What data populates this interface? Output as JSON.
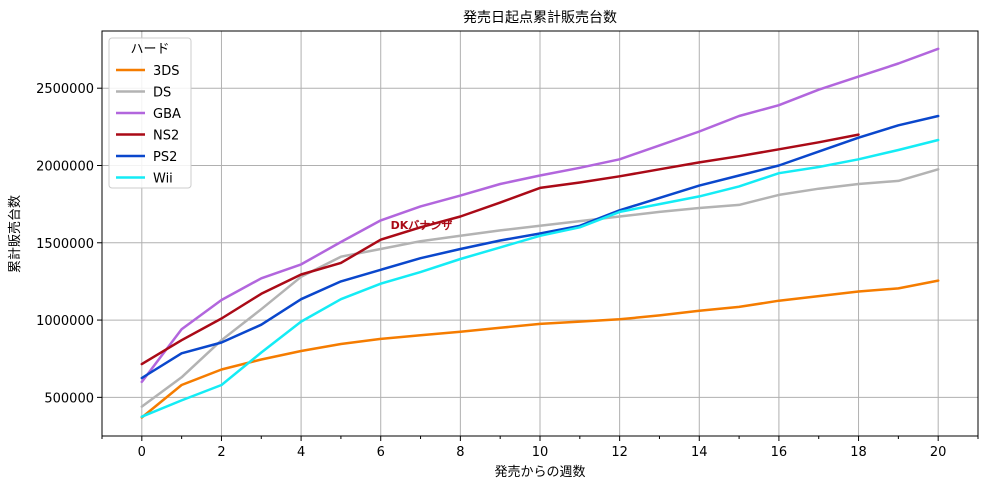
{
  "chart_data": {
    "type": "line",
    "title": "発売日起点累計販売台数",
    "xlabel": "発売からの週数",
    "ylabel": "累計販売台数",
    "xlim": [
      -1,
      21
    ],
    "ylim": [
      250000,
      2870000
    ],
    "x_ticks": [
      0,
      2,
      4,
      6,
      8,
      10,
      12,
      14,
      16,
      18,
      20
    ],
    "x_minor_ticks": [
      -1,
      1,
      3,
      5,
      7,
      9,
      11,
      13,
      15,
      17,
      19,
      21
    ],
    "y_ticks": [
      500000,
      1000000,
      1500000,
      2000000,
      2500000
    ],
    "grid": true,
    "legend": {
      "title": "ハード",
      "placement": "top-left"
    },
    "x": [
      0,
      1,
      2,
      3,
      4,
      5,
      6,
      7,
      8,
      9,
      10,
      11,
      12,
      13,
      14,
      15,
      16,
      17,
      18,
      19,
      20
    ],
    "series": [
      {
        "name": "3DS",
        "color": "#f57c00",
        "values": [
          370000,
          580000,
          680000,
          745000,
          800000,
          845000,
          878000,
          902000,
          925000,
          950000,
          975000,
          990000,
          1005000,
          1030000,
          1060000,
          1085000,
          1125000,
          1155000,
          1185000,
          1205000,
          1255000
        ]
      },
      {
        "name": "DS",
        "color": "#b3b3b3",
        "values": [
          440000,
          630000,
          870000,
          1070000,
          1280000,
          1410000,
          1460000,
          1510000,
          1545000,
          1580000,
          1610000,
          1640000,
          1670000,
          1700000,
          1725000,
          1745000,
          1810000,
          1850000,
          1880000,
          1900000,
          1975000
        ]
      },
      {
        "name": "GBA",
        "color": "#b266dd",
        "values": [
          600000,
          940000,
          1130000,
          1270000,
          1360000,
          1505000,
          1645000,
          1735000,
          1805000,
          1880000,
          1935000,
          1985000,
          2040000,
          2130000,
          2220000,
          2320000,
          2390000,
          2490000,
          2575000,
          2660000,
          2755000
        ]
      },
      {
        "name": "NS2",
        "color": "#aa0a17",
        "values": [
          715000,
          870000,
          1010000,
          1170000,
          1295000,
          1370000,
          1520000,
          1600000,
          1670000,
          1760000,
          1855000,
          1890000,
          1930000,
          1975000,
          2020000,
          2060000,
          2105000,
          2150000,
          2200000,
          null,
          null
        ]
      },
      {
        "name": "PS2",
        "color": "#0a47cc",
        "values": [
          625000,
          785000,
          855000,
          970000,
          1135000,
          1250000,
          1325000,
          1400000,
          1460000,
          1515000,
          1560000,
          1610000,
          1710000,
          1790000,
          1870000,
          1935000,
          2000000,
          2090000,
          2180000,
          2260000,
          2320000
        ]
      },
      {
        "name": "Wii",
        "color": "#14ecf5",
        "values": [
          375000,
          480000,
          580000,
          790000,
          990000,
          1135000,
          1235000,
          1310000,
          1395000,
          1470000,
          1545000,
          1600000,
          1700000,
          1750000,
          1800000,
          1865000,
          1950000,
          1990000,
          2040000,
          2100000,
          2165000
        ]
      }
    ],
    "annotations": [
      {
        "text": "DKバナンザ",
        "x": 6.25,
        "y": 1590000,
        "color": "#aa0a17"
      }
    ]
  }
}
